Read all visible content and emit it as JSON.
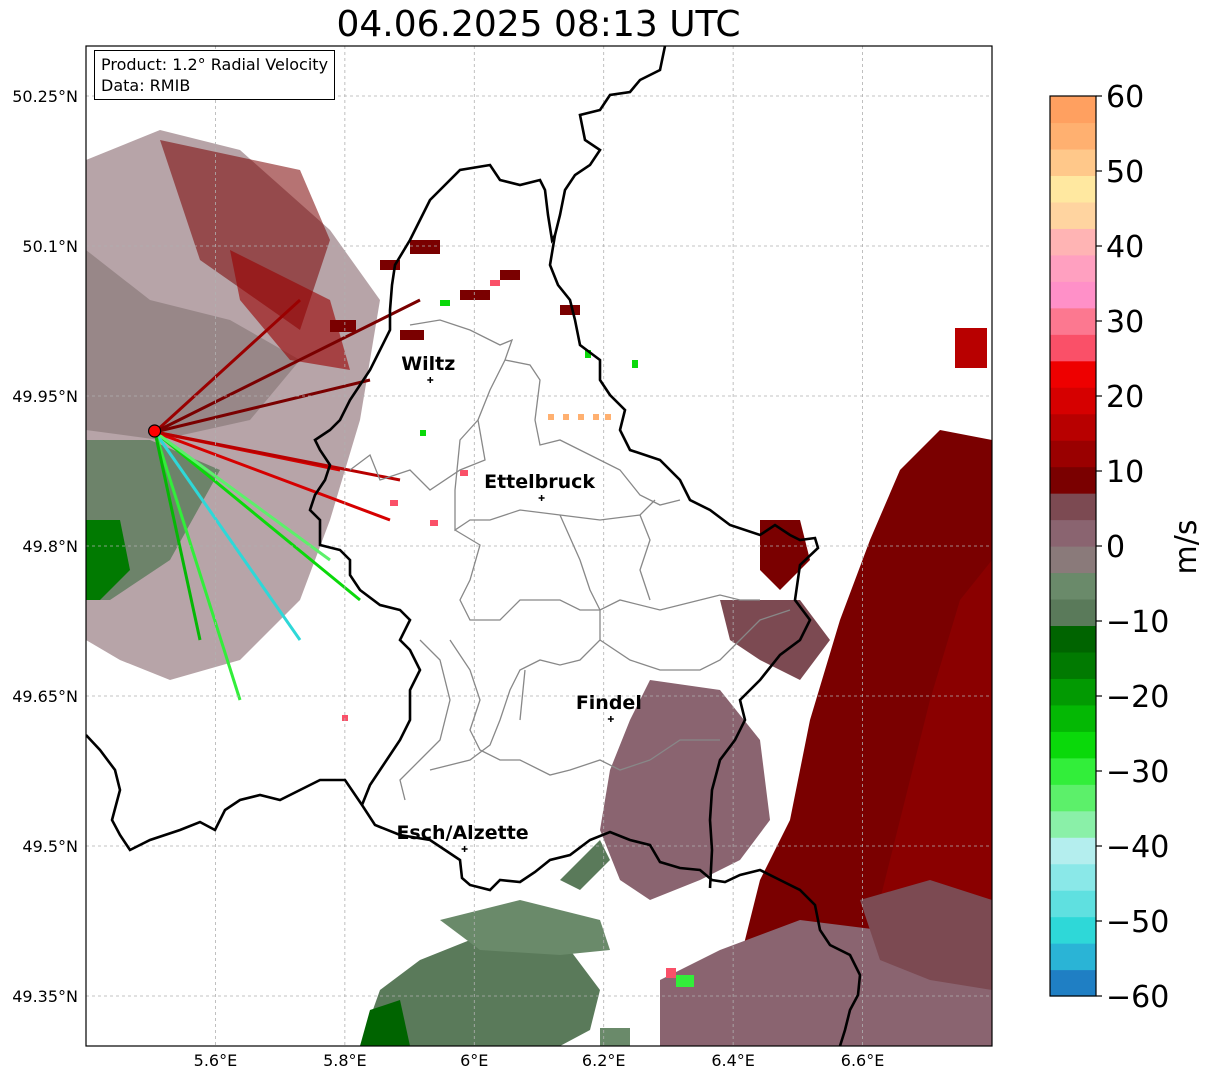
{
  "title": "04.06.2025 08:13 UTC",
  "info": {
    "product": "Product: 1.2° Radial Velocity",
    "data": "Data: RMIB"
  },
  "map": {
    "lon_range": [
      5.4,
      6.8
    ],
    "lat_range": [
      49.3,
      50.3
    ],
    "lat_ticks": [
      {
        "value": 50.25,
        "label": "50.25°N"
      },
      {
        "value": 50.1,
        "label": "50.1°N"
      },
      {
        "value": 49.95,
        "label": "49.95°N"
      },
      {
        "value": 49.8,
        "label": "49.8°N"
      },
      {
        "value": 49.65,
        "label": "49.65°N"
      },
      {
        "value": 49.5,
        "label": "49.5°N"
      },
      {
        "value": 49.35,
        "label": "49.35°N"
      }
    ],
    "lon_ticks": [
      {
        "value": 5.6,
        "label": "5.6°E"
      },
      {
        "value": 5.8,
        "label": "5.8°E"
      },
      {
        "value": 6.0,
        "label": "6°E"
      },
      {
        "value": 6.2,
        "label": "6.2°E"
      },
      {
        "value": 6.4,
        "label": "6.4°E"
      },
      {
        "value": 6.6,
        "label": "6.6°E"
      }
    ],
    "radar_site": {
      "lon": 5.506,
      "lat": 49.915
    },
    "cities": [
      {
        "name": "Wiltz",
        "lon": 5.932,
        "lat": 49.966
      },
      {
        "name": "Ettelbruck",
        "lon": 6.104,
        "lat": 49.848
      },
      {
        "name": "Findel",
        "lon": 6.211,
        "lat": 49.627
      },
      {
        "name": "Esch/Alzette",
        "lon": 5.985,
        "lat": 49.497
      }
    ]
  },
  "colorbar": {
    "unit": "m/s",
    "min": -60,
    "max": 60,
    "ticks": [
      {
        "value": 60,
        "label": "60"
      },
      {
        "value": 50,
        "label": "50"
      },
      {
        "value": 40,
        "label": "40"
      },
      {
        "value": 30,
        "label": "30"
      },
      {
        "value": 20,
        "label": "20"
      },
      {
        "value": 10,
        "label": "10"
      },
      {
        "value": 0,
        "label": "0"
      },
      {
        "value": -10,
        "label": "−10"
      },
      {
        "value": -20,
        "label": "−20"
      },
      {
        "value": -30,
        "label": "−30"
      },
      {
        "value": -40,
        "label": "−40"
      },
      {
        "value": -50,
        "label": "−50"
      },
      {
        "value": -60,
        "label": "−60"
      }
    ],
    "colors": [
      "#1f7fc4",
      "#2ab4d6",
      "#2ed8d8",
      "#5fe0e0",
      "#8ae8e8",
      "#b4eeee",
      "#8af0a8",
      "#5cf06a",
      "#32ee3a",
      "#0ad90a",
      "#04b804",
      "#029a02",
      "#017a01",
      "#006400",
      "#5a7a5a",
      "#6a8a6a",
      "#8a7a7a",
      "#8a6470",
      "#7c4a52",
      "#7a0000",
      "#9a0000",
      "#b80000",
      "#d60000",
      "#ee0000",
      "#fa5068",
      "#fc7890",
      "#ff90c8",
      "#ffa0c0",
      "#ffb4b4",
      "#ffd4a0",
      "#ffe8a0",
      "#ffc88a",
      "#ffb070",
      "#ffa060"
    ]
  }
}
